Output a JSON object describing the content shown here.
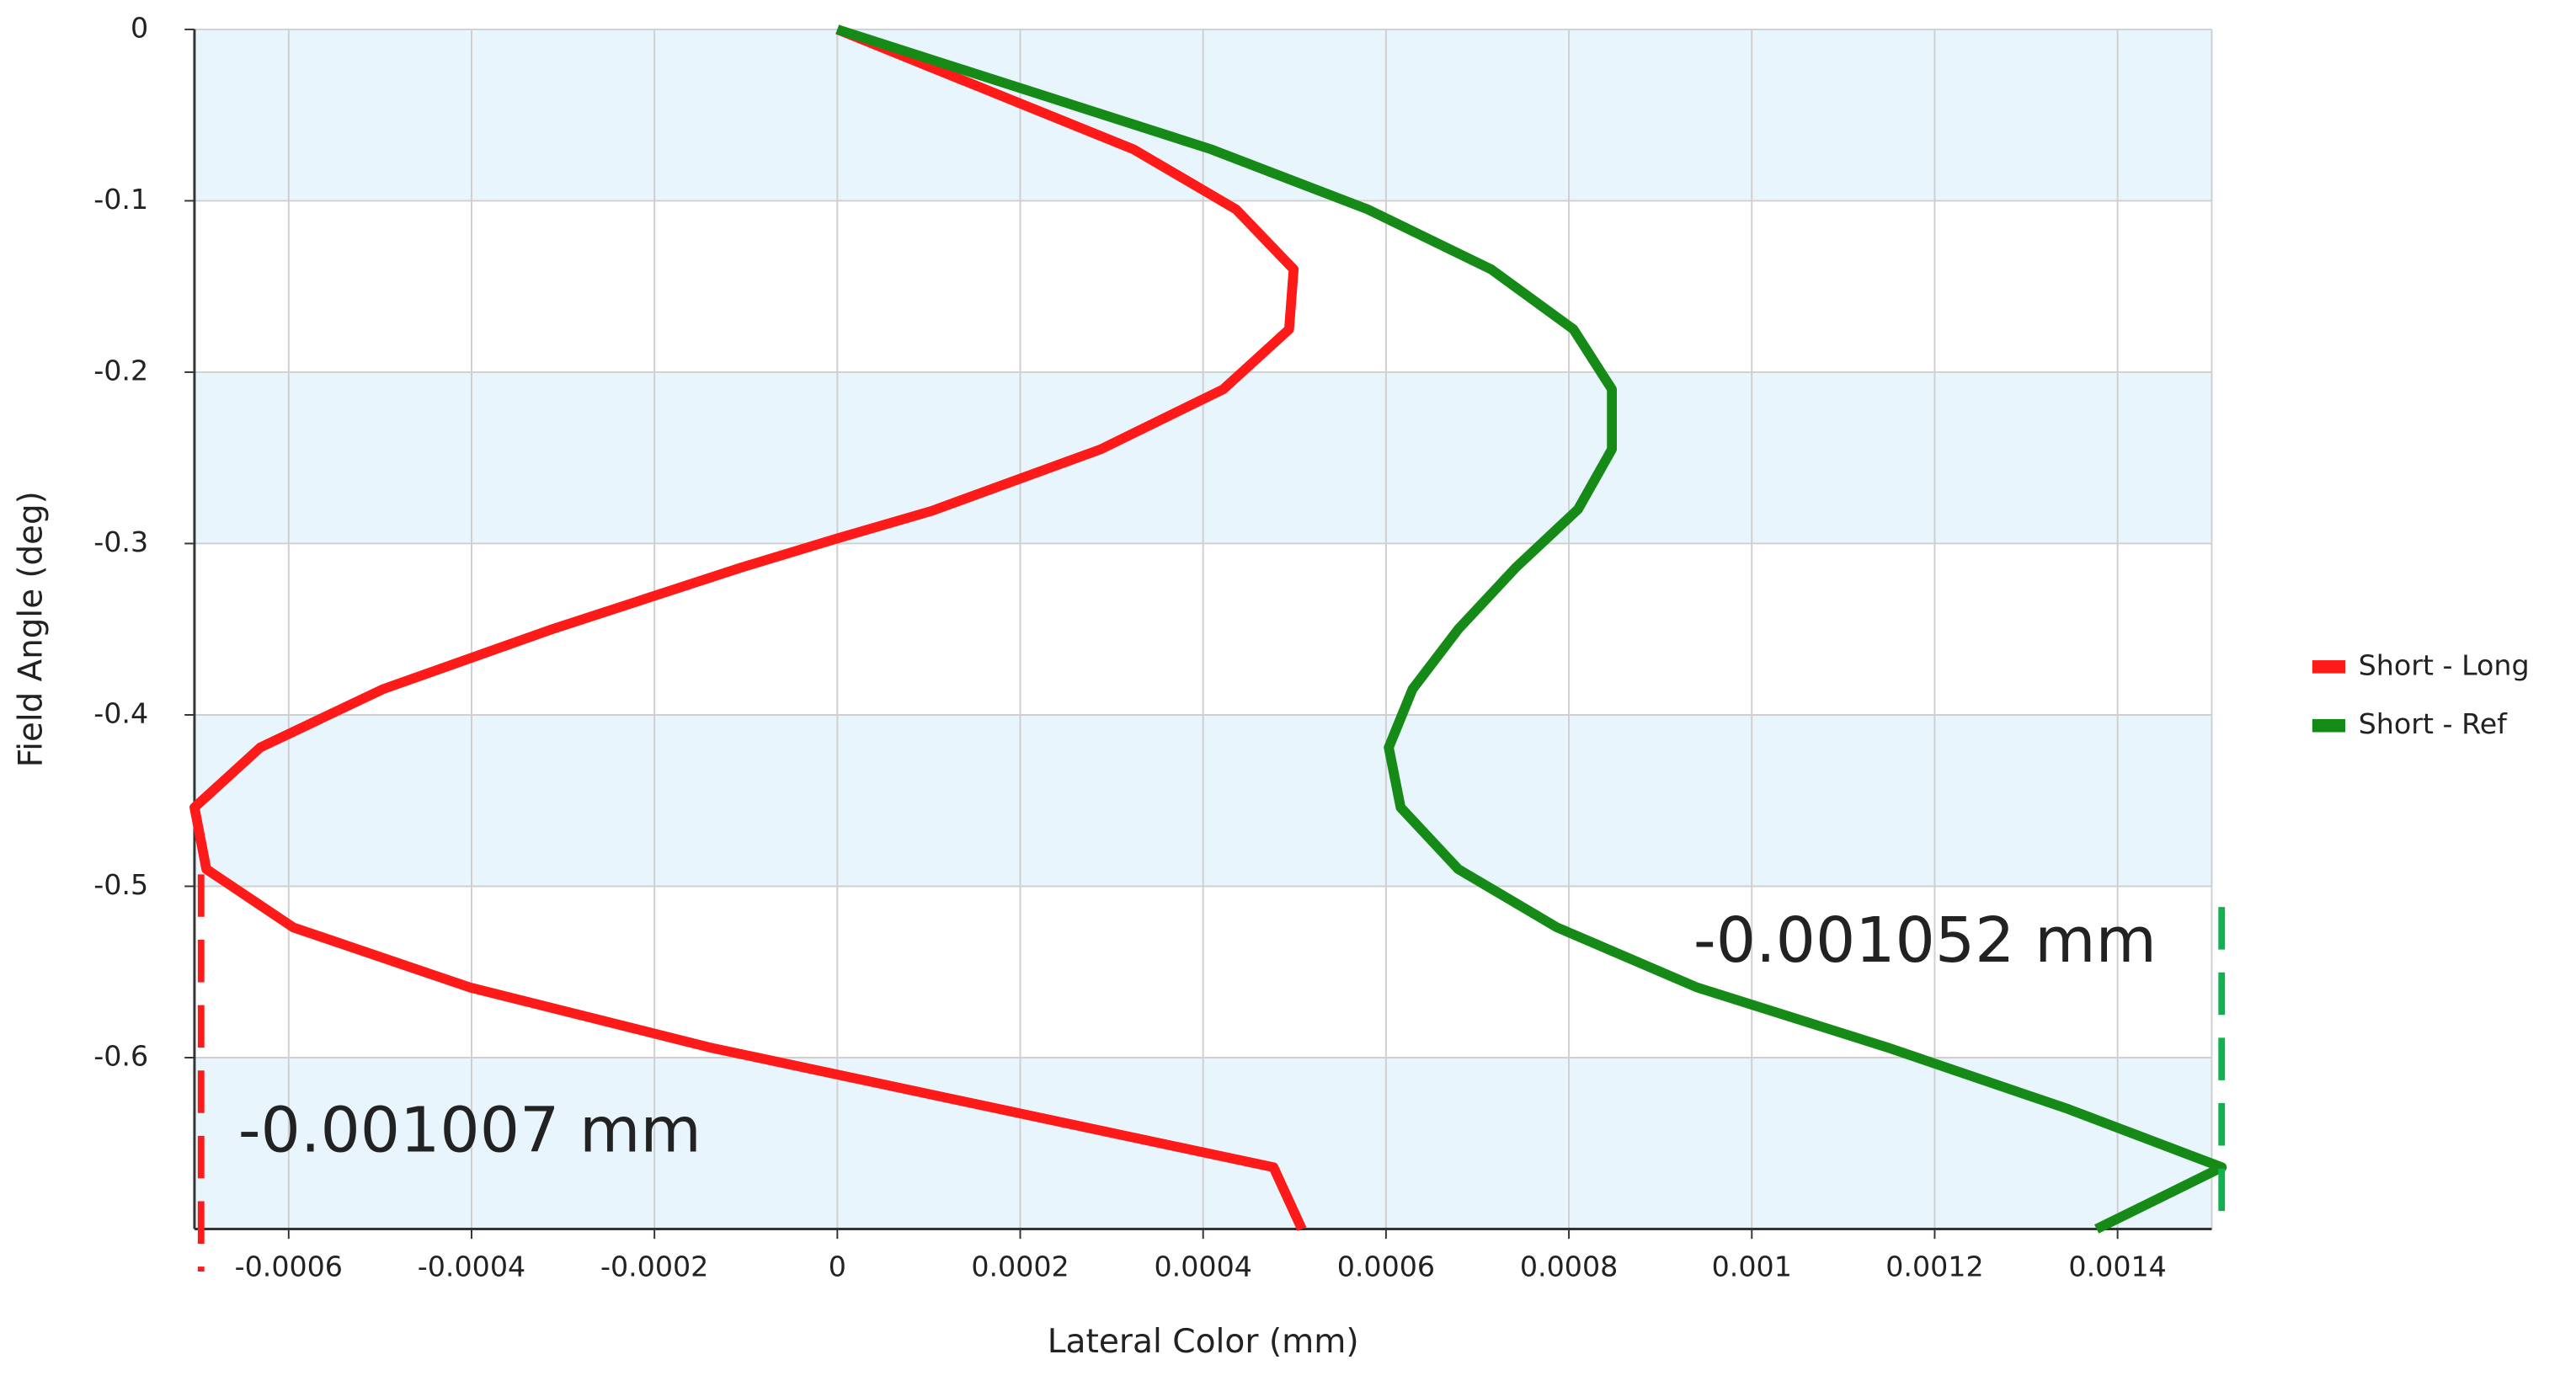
{
  "chart_data": {
    "type": "line",
    "x_label": "Lateral Color (mm)",
    "y_label": "Field Angle (deg)",
    "xlim": [
      -0.000703,
      0.001503
    ],
    "ylim": [
      -0.7,
      0
    ],
    "xticks": [
      -0.0006,
      -0.0004,
      -0.0002,
      0,
      0.0002,
      0.0004,
      0.0006,
      0.0008,
      0.001,
      0.0012,
      0.0014
    ],
    "yticks": [
      0,
      -0.1,
      -0.2,
      -0.3,
      -0.4,
      -0.5,
      -0.6
    ],
    "grid": true,
    "band_color": "#e8f5fd",
    "legend": "right",
    "series": [
      {
        "name": "Short - Long",
        "color": "#ff1a1a",
        "x": [
          0,
          0.000324,
          0.000436,
          0.000499,
          0.000494,
          0.000422,
          0.000288,
          0.000103,
          0,
          -0.000105,
          -0.000312,
          -0.000497,
          -0.000631,
          -0.000703,
          -0.00069,
          -0.000595,
          -0.000402,
          -0.00014,
          0.000477,
          0.000508
        ],
        "y": [
          0,
          -0.07,
          -0.105,
          -0.14,
          -0.175,
          -0.21,
          -0.245,
          -0.281,
          -0.297,
          -0.314,
          -0.35,
          -0.385,
          -0.419,
          -0.454,
          -0.49,
          -0.524,
          -0.559,
          -0.594,
          -0.664,
          -0.7
        ]
      },
      {
        "name": "Short - Ref",
        "color": "#168a16",
        "x": [
          0,
          0.000409,
          0.00058,
          0.000715,
          0.000805,
          0.000847,
          0.000847,
          0.00081,
          0.000742,
          0.000679,
          0.000629,
          0.000603,
          0.000616,
          0.000679,
          0.000787,
          0.00094,
          0.001148,
          0.001346,
          0.001514,
          0.001377
        ],
        "y": [
          0,
          -0.07,
          -0.105,
          -0.14,
          -0.175,
          -0.21,
          -0.245,
          -0.28,
          -0.314,
          -0.35,
          -0.385,
          -0.419,
          -0.454,
          -0.49,
          -0.524,
          -0.559,
          -0.594,
          -0.63,
          -0.664,
          -0.7
        ]
      }
    ],
    "annotations": [
      {
        "text": "-0.001052 mm",
        "color": "#11b050"
      },
      {
        "text": "-0.001007 mm",
        "color": "#ff1a1a"
      }
    ]
  }
}
